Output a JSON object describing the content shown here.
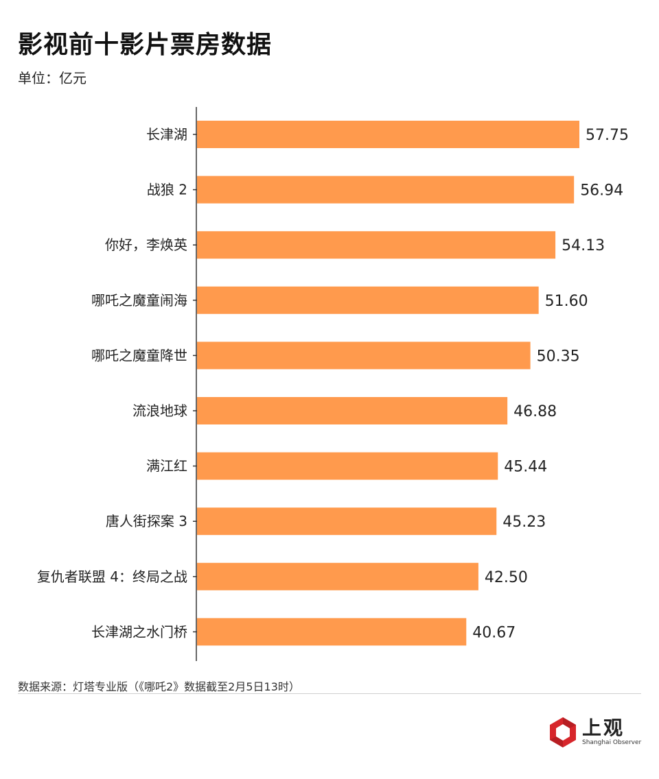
{
  "header": {
    "title": "影视前十影片票房数据",
    "unit": "单位：亿元"
  },
  "chart_data": {
    "type": "bar",
    "orientation": "horizontal",
    "title": "影视前十影片票房数据",
    "xlabel": "",
    "ylabel": "",
    "unit": "亿元",
    "bar_color": "#FF9A4D",
    "categories": [
      "长津湖",
      "战狼 2",
      "你好，李焕英",
      "哪吒之魔童闹海",
      "哪吒之魔童降世",
      "流浪地球",
      "满江红",
      "唐人街探案 3",
      "复仇者联盟 4：终局之战",
      "长津湖之水门桥"
    ],
    "values": [
      57.75,
      56.94,
      54.13,
      51.6,
      50.35,
      46.88,
      45.44,
      45.23,
      42.5,
      40.67
    ],
    "value_labels": [
      "57.75",
      "56.94",
      "54.13",
      "51.60",
      "50.35",
      "46.88",
      "45.44",
      "45.23",
      "42.50",
      "40.67"
    ],
    "xlim": [
      0,
      57.75
    ],
    "grid": false,
    "legend": "none"
  },
  "footer": {
    "source": "数据来源：灯塔专业版（《哪吒2》数据截至2月5日13时）",
    "logo_text": "上观",
    "logo_subtext": "Shanghai Observer",
    "logo_color": "#D7262B"
  }
}
